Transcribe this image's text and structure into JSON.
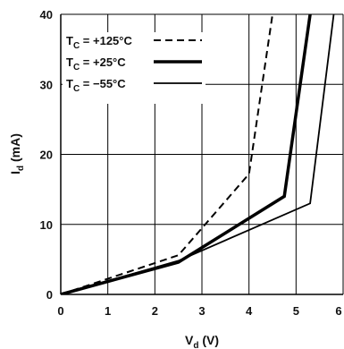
{
  "chart_data": {
    "type": "line",
    "xlabel": "V",
    "xlabel_sub": "d",
    "xlabel_unit": " (V)",
    "ylabel": "I",
    "ylabel_sub": "d",
    "ylabel_unit": " (mA)",
    "xlim": [
      0,
      6
    ],
    "ylim": [
      0,
      40
    ],
    "x_ticks": [
      "0",
      "1",
      "2",
      "3",
      "4",
      "5",
      "6"
    ],
    "y_ticks": [
      "0",
      "10",
      "20",
      "30",
      "40"
    ],
    "grid": true,
    "legend_position": "top-left",
    "series": [
      {
        "name_prefix": "T",
        "name_sub": "C",
        "name_suffix": " = +125°C",
        "style": "dashed",
        "color": "#000000",
        "points": [
          [
            0,
            0
          ],
          [
            2.5,
            5.6
          ],
          [
            4.0,
            17.2
          ],
          [
            4.5,
            40
          ]
        ]
      },
      {
        "name_prefix": "T",
        "name_sub": "C",
        "name_suffix": " = +25°C",
        "style": "thick",
        "color": "#000000",
        "points": [
          [
            0,
            0
          ],
          [
            2.5,
            4.6
          ],
          [
            4.75,
            14.0
          ],
          [
            5.3,
            40
          ]
        ]
      },
      {
        "name_prefix": "T",
        "name_sub": "C",
        "name_suffix": " = −55°C",
        "style": "solid",
        "color": "#000000",
        "points": [
          [
            0,
            0
          ],
          [
            2.5,
            4.8
          ],
          [
            5.3,
            13.0
          ],
          [
            5.8,
            40
          ]
        ]
      }
    ]
  }
}
